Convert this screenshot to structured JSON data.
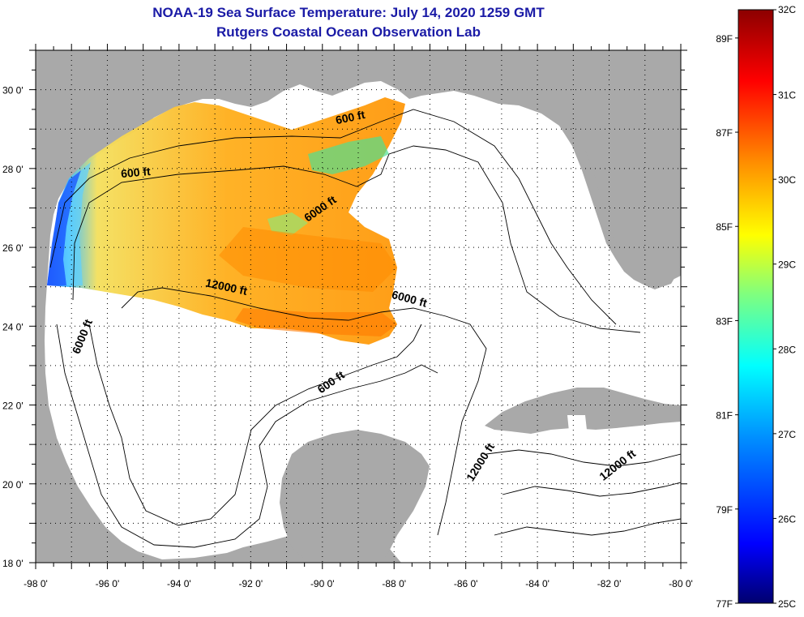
{
  "title": "NOAA-19 Sea Surface Temperature:  July 14, 2020 1259 GMT",
  "subtitle": "Rutgers Coastal Ocean Observation Lab",
  "title_color": "#1a1aa6",
  "map": {
    "lat_labels": [
      "30 0'",
      "28 0'",
      "26 0'",
      "24 0'",
      "22 0'",
      "20 0'",
      "18 0'"
    ],
    "lat_values": [
      30,
      28,
      26,
      24,
      22,
      20,
      18
    ],
    "lon_labels": [
      "-98 0'",
      "-96 0'",
      "-94 0'",
      "-92 0'",
      "-90 0'",
      "-88 0'",
      "-86 0'",
      "-84 0'",
      "-82 0'",
      "-80 0'"
    ],
    "lon_values": [
      -98,
      -96,
      -94,
      -92,
      -90,
      -88,
      -86,
      -84,
      -82,
      -80
    ],
    "lat_range": [
      18,
      31
    ],
    "lon_range": [
      -98,
      -80
    ],
    "land_color": "#a9a9a9",
    "isobaths": [
      {
        "text": "600 ft",
        "lon": -89.2,
        "lat": 29.2,
        "angle": -12
      },
      {
        "text": "600 ft",
        "lon": -95.2,
        "lat": 27.8,
        "angle": -5
      },
      {
        "text": "6000 ft",
        "lon": -90.0,
        "lat": 26.9,
        "angle": -35
      },
      {
        "text": "12000 ft",
        "lon": -92.7,
        "lat": 24.9,
        "angle": 12
      },
      {
        "text": "6000 ft",
        "lon": -87.6,
        "lat": 24.6,
        "angle": 15
      },
      {
        "text": "6000 ft",
        "lon": -96.6,
        "lat": 23.7,
        "angle": -68
      },
      {
        "text": "600 ft",
        "lon": -89.7,
        "lat": 22.5,
        "angle": -35
      },
      {
        "text": "12000 ft",
        "lon": -85.5,
        "lat": 20.5,
        "angle": -58
      },
      {
        "text": "12000 ft",
        "lon": -81.7,
        "lat": 20.4,
        "angle": -38
      }
    ]
  },
  "colorbar": {
    "celsius_labels": [
      "32C",
      "31C",
      "30C",
      "29C",
      "28C",
      "27C",
      "26C",
      "25C"
    ],
    "celsius_values": [
      32,
      31,
      30,
      29,
      28,
      27,
      26,
      25
    ],
    "fahrenheit_labels": [
      "89F",
      "87F",
      "85F",
      "83F",
      "81F",
      "79F",
      "77F"
    ],
    "fahrenheit_values": [
      89,
      87,
      85,
      83,
      81,
      79,
      77
    ],
    "range_c": [
      25,
      32
    ],
    "colors": [
      "#00006e",
      "#0000ff",
      "#0090ff",
      "#00ffff",
      "#7fff7f",
      "#ffff00",
      "#ff9000",
      "#ff0000",
      "#8c0000"
    ]
  }
}
